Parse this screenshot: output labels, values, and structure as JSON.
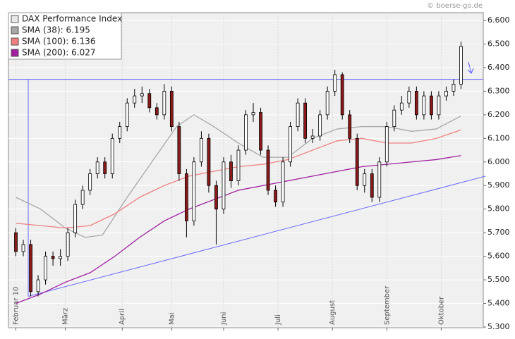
{
  "chart_data": {
    "type": "candlestick",
    "watermark": "© boerse-go.de",
    "name": "DAX Performance Index",
    "legend_color": "#e8e8e8",
    "up_color": "#ffffff",
    "down_color": "#8b1a1a",
    "x": [
      0,
      3,
      6,
      9,
      12,
      15,
      18,
      21,
      24,
      27,
      30,
      33,
      36,
      39,
      42,
      45,
      48,
      51,
      54,
      57,
      60,
      63,
      66,
      69,
      72,
      75,
      78,
      81,
      84,
      87,
      90,
      93,
      96,
      99,
      102,
      105,
      108,
      111,
      114,
      117,
      120,
      123,
      126,
      129,
      132,
      135,
      138,
      141,
      144,
      147,
      150,
      153,
      156,
      159,
      162,
      165,
      168,
      171,
      174,
      177,
      180
    ],
    "open": [
      5700,
      5620,
      5650,
      5450,
      5500,
      5600,
      5590,
      5600,
      5700,
      5820,
      5880,
      5950,
      6000,
      5950,
      6100,
      6150,
      6250,
      6280,
      6290,
      6230,
      6200,
      6300,
      6150,
      5950,
      5750,
      6000,
      6100,
      5900,
      5800,
      6000,
      5920,
      6050,
      6200,
      6210,
      6050,
      5880,
      5830,
      6000,
      6150,
      6250,
      6100,
      6110,
      6200,
      6300,
      6370,
      6200,
      6100,
      5900,
      5950,
      5850,
      6000,
      6150,
      6220,
      6250,
      6300,
      6200,
      6280,
      6200,
      6280,
      6300,
      6330
    ],
    "high": [
      5720,
      5670,
      5670,
      5520,
      5620,
      5620,
      5630,
      5720,
      5840,
      5900,
      5970,
      6020,
      6020,
      6120,
      6170,
      6270,
      6310,
      6320,
      6310,
      6250,
      6330,
      6320,
      6170,
      5970,
      6020,
      6130,
      6120,
      5920,
      6020,
      6030,
      6070,
      6220,
      6250,
      6230,
      6070,
      5900,
      6020,
      6170,
      6270,
      6270,
      6140,
      6220,
      6320,
      6390,
      6380,
      6220,
      6120,
      5970,
      5970,
      6020,
      6170,
      6240,
      6280,
      6320,
      6320,
      6300,
      6300,
      6300,
      6320,
      6350,
      6510
    ],
    "low": [
      5600,
      5600,
      5430,
      5430,
      5480,
      5560,
      5560,
      5580,
      5680,
      5800,
      5860,
      5930,
      5930,
      5930,
      6080,
      6130,
      6230,
      6250,
      6210,
      6180,
      6180,
      6130,
      5920,
      5680,
      5730,
      5980,
      5870,
      5650,
      5780,
      5890,
      5900,
      6030,
      6170,
      6030,
      5860,
      5810,
      5810,
      5980,
      6130,
      6080,
      6080,
      6090,
      6180,
      6280,
      6180,
      6080,
      5880,
      5870,
      5830,
      5830,
      5980,
      6130,
      6200,
      6230,
      6180,
      6180,
      6180,
      6180,
      6260,
      6280,
      6310
    ],
    "close": [
      5620,
      5650,
      5450,
      5500,
      5600,
      5590,
      5600,
      5700,
      5820,
      5880,
      5950,
      6000,
      5950,
      6100,
      6150,
      6250,
      6280,
      6290,
      6230,
      6200,
      6300,
      6150,
      5950,
      5750,
      6000,
      6100,
      5900,
      5800,
      6000,
      5920,
      6050,
      6200,
      6210,
      6050,
      5880,
      5830,
      6000,
      6150,
      6250,
      6100,
      6110,
      6200,
      6300,
      6370,
      6200,
      6100,
      5900,
      5950,
      5850,
      6000,
      6150,
      6220,
      6250,
      6300,
      6200,
      6280,
      6200,
      6280,
      6300,
      6330,
      6490
    ],
    "series": [
      {
        "name": "SMA (38): 6.195",
        "color": "#a8a8a8",
        "x": [
          0,
          10,
          20,
          28,
          35,
          45,
          55,
          65,
          72,
          80,
          90,
          100,
          110,
          120,
          130,
          140,
          150,
          160,
          170,
          180
        ],
        "values": [
          5850,
          5800,
          5720,
          5680,
          5690,
          5850,
          6000,
          6150,
          6200,
          6150,
          6080,
          6020,
          6020,
          6100,
          6140,
          6150,
          6150,
          6130,
          6140,
          6195
        ]
      },
      {
        "name": "SMA (100): 6.136",
        "color": "#f08080",
        "x": [
          0,
          10,
          20,
          30,
          40,
          50,
          60,
          70,
          80,
          90,
          100,
          110,
          120,
          130,
          140,
          150,
          160,
          170,
          180
        ],
        "values": [
          5740,
          5730,
          5720,
          5730,
          5780,
          5850,
          5900,
          5940,
          5960,
          5980,
          5990,
          6010,
          6050,
          6090,
          6100,
          6080,
          6080,
          6100,
          6136
        ]
      },
      {
        "name": "SMA (200): 6.027",
        "color": "#a020a0",
        "x": [
          0,
          10,
          20,
          30,
          40,
          50,
          60,
          70,
          80,
          90,
          100,
          110,
          120,
          130,
          140,
          150,
          160,
          170,
          180
        ],
        "values": [
          5400,
          5440,
          5490,
          5530,
          5600,
          5680,
          5750,
          5800,
          5840,
          5880,
          5900,
          5920,
          5940,
          5960,
          5980,
          5990,
          6000,
          6010,
          6027
        ]
      }
    ],
    "hline": 6350,
    "trendline": {
      "x": [
        5,
        190
      ],
      "y": [
        5430,
        5940
      ]
    },
    "line_color": "#6a6aff",
    "xlim": [
      -3,
      189
    ],
    "ylim": [
      5297,
      6633
    ],
    "xticks": [
      {
        "value": 0,
        "label": "Februar 10"
      },
      {
        "value": 20,
        "label": "März"
      },
      {
        "value": 43,
        "label": "April"
      },
      {
        "value": 63,
        "label": "Mai"
      },
      {
        "value": 84,
        "label": "Juni"
      },
      {
        "value": 106,
        "label": "Juli"
      },
      {
        "value": 128,
        "label": "August"
      },
      {
        "value": 150,
        "label": "September"
      },
      {
        "value": 172,
        "label": "Oktober"
      }
    ],
    "yticks": [
      {
        "value": 5300,
        "label": "5.300"
      },
      {
        "value": 5400,
        "label": "5.400"
      },
      {
        "value": 5500,
        "label": "5.500"
      },
      {
        "value": 5600,
        "label": "5.600"
      },
      {
        "value": 5700,
        "label": "5.700"
      },
      {
        "value": 5800,
        "label": "5.800"
      },
      {
        "value": 5900,
        "label": "5.900"
      },
      {
        "value": 6000,
        "label": "6.000"
      },
      {
        "value": 6100,
        "label": "6.100"
      },
      {
        "value": 6200,
        "label": "6.200"
      },
      {
        "value": 6300,
        "label": "6.300"
      },
      {
        "value": 6400,
        "label": "6.400"
      },
      {
        "value": 6500,
        "label": "6.500"
      },
      {
        "value": 6600,
        "label": "6.600"
      }
    ],
    "grid": true
  }
}
